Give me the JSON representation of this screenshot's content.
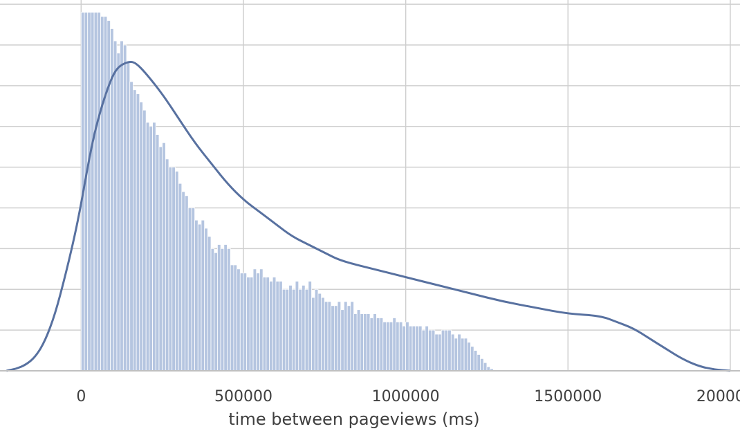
{
  "chart_data": {
    "type": "bar",
    "subtype": "histogram-with-kde",
    "title": "",
    "xlabel": "time between pageviews (ms)",
    "ylabel": "",
    "xlim": [
      -250000,
      2030000
    ],
    "ylim": [
      0,
      0.89
    ],
    "x_ticks": [
      0,
      500000,
      1000000,
      1500000,
      2000000
    ],
    "x_tick_labels": [
      "0",
      "500000",
      "1000000",
      "1500000",
      "2000000"
    ],
    "y_gridlines": [
      0.1,
      0.2,
      0.3,
      0.4,
      0.5,
      0.6,
      0.7,
      0.8,
      0.9
    ],
    "y_tick_labels_visible": false,
    "grid": true,
    "bin_width": 10000,
    "bin_start": 0,
    "bin_values": [
      0.88,
      0.88,
      0.88,
      0.88,
      0.88,
      0.88,
      0.87,
      0.87,
      0.86,
      0.84,
      0.81,
      0.78,
      0.81,
      0.8,
      0.76,
      0.71,
      0.69,
      0.68,
      0.66,
      0.64,
      0.61,
      0.6,
      0.61,
      0.58,
      0.55,
      0.56,
      0.52,
      0.5,
      0.5,
      0.49,
      0.46,
      0.44,
      0.43,
      0.4,
      0.4,
      0.37,
      0.36,
      0.37,
      0.35,
      0.33,
      0.3,
      0.29,
      0.31,
      0.3,
      0.31,
      0.3,
      0.26,
      0.26,
      0.25,
      0.24,
      0.24,
      0.23,
      0.23,
      0.25,
      0.24,
      0.25,
      0.23,
      0.23,
      0.22,
      0.23,
      0.22,
      0.22,
      0.2,
      0.2,
      0.21,
      0.2,
      0.22,
      0.2,
      0.21,
      0.2,
      0.22,
      0.18,
      0.2,
      0.19,
      0.18,
      0.17,
      0.17,
      0.16,
      0.16,
      0.17,
      0.15,
      0.17,
      0.16,
      0.17,
      0.14,
      0.15,
      0.14,
      0.14,
      0.14,
      0.13,
      0.14,
      0.13,
      0.13,
      0.12,
      0.12,
      0.12,
      0.13,
      0.12,
      0.12,
      0.11,
      0.12,
      0.11,
      0.11,
      0.11,
      0.11,
      0.1,
      0.11,
      0.1,
      0.1,
      0.09,
      0.09,
      0.1,
      0.1,
      0.1,
      0.09,
      0.08,
      0.09,
      0.08,
      0.08,
      0.07,
      0.06,
      0.05,
      0.04,
      0.03,
      0.02,
      0.01,
      0.005
    ],
    "kde": {
      "x": [
        -230000,
        -200000,
        -170000,
        -140000,
        -110000,
        -80000,
        -50000,
        -20000,
        0,
        20000,
        40000,
        60000,
        80000,
        100000,
        120000,
        150000,
        170000,
        200000,
        250000,
        300000,
        350000,
        400000,
        450000,
        500000,
        550000,
        600000,
        650000,
        700000,
        750000,
        800000,
        900000,
        1000000,
        1100000,
        1200000,
        1300000,
        1400000,
        1500000,
        1600000,
        1650000,
        1700000,
        1750000,
        1800000,
        1850000,
        1900000,
        1950000,
        2000000
      ],
      "y": [
        0.0,
        0.005,
        0.015,
        0.035,
        0.075,
        0.14,
        0.23,
        0.33,
        0.41,
        0.5,
        0.58,
        0.64,
        0.69,
        0.73,
        0.75,
        0.76,
        0.755,
        0.73,
        0.68,
        0.62,
        0.56,
        0.51,
        0.46,
        0.42,
        0.39,
        0.36,
        0.33,
        0.31,
        0.29,
        0.27,
        0.25,
        0.23,
        0.21,
        0.19,
        0.17,
        0.155,
        0.14,
        0.135,
        0.12,
        0.105,
        0.08,
        0.055,
        0.03,
        0.012,
        0.003,
        0.0
      ]
    },
    "colors": {
      "bar_fill": "#b5c5e0",
      "bar_stroke": "#ffffff",
      "kde_line": "#5871a0",
      "grid": "#cfcfcf",
      "axis": "#c0c0c0",
      "text": "#3f3f3f"
    }
  }
}
